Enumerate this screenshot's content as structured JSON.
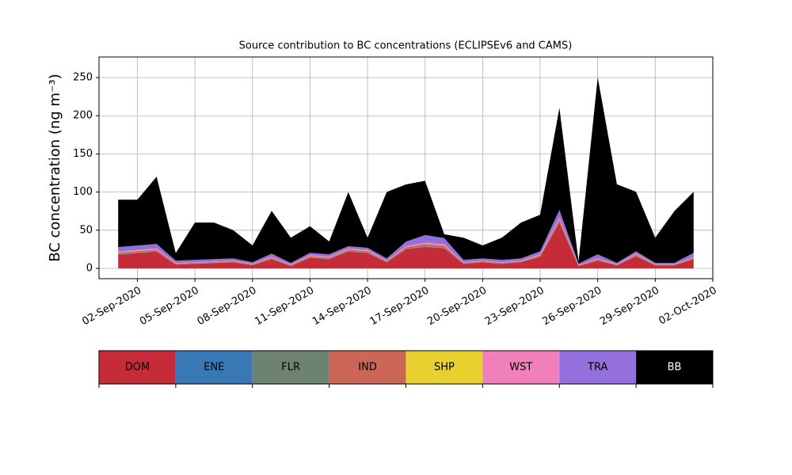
{
  "chart_data": {
    "type": "stacked_area",
    "title": "Source contribution to BC concentrations (ECLIPSEv6 and CAMS)",
    "y_label": "BC concentration (ng m⁻³)",
    "x": [
      "2020-09-01",
      "2020-09-02",
      "2020-09-03",
      "2020-09-04",
      "2020-09-05",
      "2020-09-06",
      "2020-09-07",
      "2020-09-08",
      "2020-09-09",
      "2020-09-10",
      "2020-09-11",
      "2020-09-12",
      "2020-09-13",
      "2020-09-14",
      "2020-09-15",
      "2020-09-16",
      "2020-09-17",
      "2020-09-18",
      "2020-09-19",
      "2020-09-20",
      "2020-09-21",
      "2020-09-22",
      "2020-09-23",
      "2020-09-24",
      "2020-09-25",
      "2020-09-26",
      "2020-09-27",
      "2020-09-28",
      "2020-09-29",
      "2020-09-30",
      "2020-10-01"
    ],
    "series": [
      {
        "name": "DOM",
        "color": "#c62b38",
        "values": [
          18,
          20,
          22,
          5,
          6,
          7,
          8,
          4,
          12,
          3,
          14,
          12,
          22,
          20,
          8,
          25,
          28,
          26,
          6,
          8,
          6,
          8,
          15,
          60,
          3,
          10,
          4,
          16,
          4,
          4,
          12
        ]
      },
      {
        "name": "ENE",
        "color": "#3878b4",
        "values": [
          0.5,
          0.5,
          0.5,
          0.3,
          0.3,
          0.3,
          0.3,
          0.3,
          0.4,
          0.3,
          0.4,
          0.4,
          0.5,
          0.5,
          0.3,
          0.5,
          0.6,
          0.6,
          0.3,
          0.3,
          0.3,
          0.3,
          0.4,
          0.8,
          0.2,
          0.4,
          0.2,
          0.4,
          0.2,
          0.2,
          0.4
        ]
      },
      {
        "name": "FLR",
        "color": "#6e8270",
        "values": [
          0.2,
          0.2,
          0.2,
          0.1,
          0.1,
          0.1,
          0.1,
          0.1,
          0.2,
          0.1,
          0.2,
          0.2,
          0.2,
          0.2,
          0.1,
          0.2,
          0.3,
          0.3,
          0.1,
          0.1,
          0.1,
          0.1,
          0.2,
          0.3,
          0.1,
          0.2,
          0.1,
          0.2,
          0.1,
          0.1,
          0.2
        ]
      },
      {
        "name": "IND",
        "color": "#cc6657",
        "values": [
          2,
          2,
          2,
          1,
          1,
          1,
          1,
          1,
          1.5,
          1,
          1.5,
          1.5,
          2,
          2,
          1,
          2,
          3,
          3,
          1,
          1,
          1,
          1,
          1.5,
          3,
          0.5,
          1.5,
          0.5,
          1.5,
          0.5,
          0.5,
          1.5
        ]
      },
      {
        "name": "SHP",
        "color": "#e8d12e",
        "values": [
          0.3,
          0.3,
          0.3,
          0.2,
          0.2,
          0.2,
          0.2,
          0.2,
          0.2,
          0.2,
          0.2,
          0.2,
          0.3,
          0.3,
          0.2,
          0.3,
          0.3,
          0.3,
          0.2,
          0.2,
          0.2,
          0.2,
          0.2,
          0.3,
          0.1,
          0.2,
          0.1,
          0.2,
          0.1,
          0.1,
          0.2
        ]
      },
      {
        "name": "WST",
        "color": "#f07fba",
        "values": [
          1,
          1,
          1,
          0.5,
          0.5,
          0.5,
          0.5,
          0.5,
          1,
          0.5,
          1,
          1,
          1,
          1,
          0.5,
          1,
          1.5,
          1.5,
          0.5,
          0.5,
          0.5,
          0.5,
          1,
          2,
          0.3,
          1,
          0.3,
          1,
          0.3,
          0.3,
          1
        ]
      },
      {
        "name": "TRA",
        "color": "#9370db",
        "values": [
          6,
          6,
          6,
          3,
          3,
          3,
          3,
          2,
          4,
          2,
          3,
          3,
          3,
          3,
          3,
          6,
          10,
          8,
          3,
          3,
          3,
          3,
          4,
          10,
          2,
          5,
          2,
          3,
          2,
          2,
          5
        ]
      },
      {
        "name": "BB",
        "color": "#000000",
        "values": [
          62,
          60,
          88,
          10,
          49,
          48,
          37,
          22,
          56,
          33,
          35,
          17,
          71,
          13,
          87,
          75,
          71,
          5,
          29,
          17,
          29,
          47,
          48,
          134,
          3,
          232,
          103,
          78,
          33,
          68,
          80
        ]
      }
    ],
    "xlim": [
      "2020-08-31",
      "2020-10-02"
    ],
    "xticks": [
      {
        "value": "2020-09-02",
        "label": "02-Sep-2020"
      },
      {
        "value": "2020-09-05",
        "label": "05-Sep-2020"
      },
      {
        "value": "2020-09-08",
        "label": "08-Sep-2020"
      },
      {
        "value": "2020-09-11",
        "label": "11-Sep-2020"
      },
      {
        "value": "2020-09-14",
        "label": "14-Sep-2020"
      },
      {
        "value": "2020-09-17",
        "label": "17-Sep-2020"
      },
      {
        "value": "2020-09-20",
        "label": "20-Sep-2020"
      },
      {
        "value": "2020-09-23",
        "label": "23-Sep-2020"
      },
      {
        "value": "2020-09-26",
        "label": "26-Sep-2020"
      },
      {
        "value": "2020-09-29",
        "label": "29-Sep-2020"
      },
      {
        "value": "2020-10-02",
        "label": "02-Oct-2020"
      }
    ],
    "ylim": [
      -13.5,
      277
    ],
    "yticks": [
      0,
      50,
      100,
      150,
      200,
      250
    ],
    "grid": true
  }
}
